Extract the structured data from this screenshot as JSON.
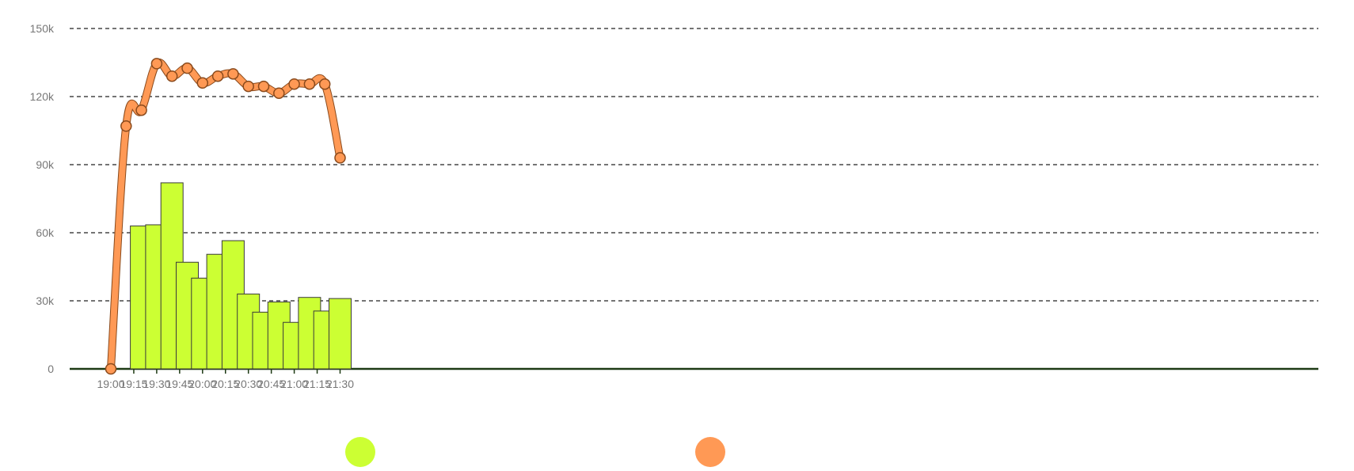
{
  "chart_data": {
    "type": "bar",
    "x": [
      "19:00",
      "19:05",
      "19:10",
      "19:15",
      "19:20",
      "19:25",
      "19:30",
      "19:35",
      "19:40",
      "19:45",
      "19:50",
      "19:55",
      "20:00",
      "20:05",
      "20:10",
      "20:15",
      "20:20",
      "20:25",
      "20:30",
      "20:35",
      "20:40",
      "20:45",
      "20:50",
      "20:55",
      "21:00",
      "21:05",
      "21:10",
      "21:15",
      "21:20",
      "21:25",
      "21:30"
    ],
    "xticks": [
      "19:00",
      "19:15",
      "19:30",
      "19:45",
      "20:00",
      "20:15",
      "20:30",
      "20:45",
      "21:00",
      "21:15",
      "21:30"
    ],
    "yticks": [
      "0",
      "30k",
      "60k",
      "90k",
      "120k",
      "150k"
    ],
    "ylim": [
      0,
      150000
    ],
    "grid": true,
    "series": [
      {
        "type": "bar",
        "color": "#ccff33",
        "points": [
          {
            "x": "19:20",
            "y": 63000
          },
          {
            "x": "19:30",
            "y": 63500
          },
          {
            "x": "19:40",
            "y": 82000
          },
          {
            "x": "19:50",
            "y": 47000
          },
          {
            "x": "20:00",
            "y": 40000
          },
          {
            "x": "20:10",
            "y": 50500
          },
          {
            "x": "20:20",
            "y": 56500
          },
          {
            "x": "20:30",
            "y": 33000
          },
          {
            "x": "20:40",
            "y": 25000
          },
          {
            "x": "20:50",
            "y": 29500
          },
          {
            "x": "21:00",
            "y": 20500
          },
          {
            "x": "21:10",
            "y": 31500
          },
          {
            "x": "21:20",
            "y": 25500
          },
          {
            "x": "21:30",
            "y": 31000
          }
        ]
      },
      {
        "type": "line",
        "color": "#ff9955",
        "points": [
          {
            "x": "19:00",
            "y": 0
          },
          {
            "x": "19:10",
            "y": 107000
          },
          {
            "x": "19:20",
            "y": 114000
          },
          {
            "x": "19:30",
            "y": 134500
          },
          {
            "x": "19:40",
            "y": 129000
          },
          {
            "x": "19:50",
            "y": 132500
          },
          {
            "x": "20:00",
            "y": 126000
          },
          {
            "x": "20:10",
            "y": 129000
          },
          {
            "x": "20:20",
            "y": 130000
          },
          {
            "x": "20:30",
            "y": 124500
          },
          {
            "x": "20:40",
            "y": 124500
          },
          {
            "x": "20:50",
            "y": 121500
          },
          {
            "x": "21:00",
            "y": 125500
          },
          {
            "x": "21:10",
            "y": 125500
          },
          {
            "x": "21:20",
            "y": 125500
          },
          {
            "x": "21:30",
            "y": 93000
          }
        ]
      }
    ],
    "legend": {
      "placement": "bottom",
      "items": [
        {
          "color": "#ccff33"
        },
        {
          "color": "#ff9955"
        }
      ]
    }
  }
}
